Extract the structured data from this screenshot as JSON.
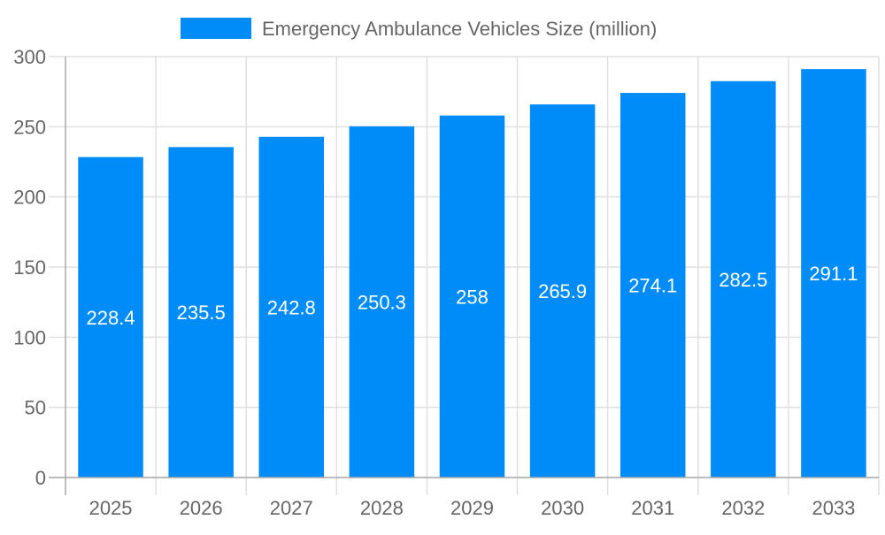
{
  "chart_data": {
    "type": "bar",
    "categories": [
      "2025",
      "2026",
      "2027",
      "2028",
      "2029",
      "2030",
      "2031",
      "2032",
      "2033"
    ],
    "series": [
      {
        "name": "Emergency Ambulance Vehicles Size (million)",
        "values": [
          228.4,
          235.5,
          242.8,
          250.3,
          258,
          265.9,
          274.1,
          282.5,
          291.1
        ],
        "color": "#008cf8"
      }
    ],
    "ylim": [
      0,
      300
    ],
    "yticks": [
      "0",
      "50",
      "100",
      "150",
      "200",
      "250",
      "300"
    ],
    "grid": true,
    "legend_position": "top",
    "data_labels": true
  }
}
